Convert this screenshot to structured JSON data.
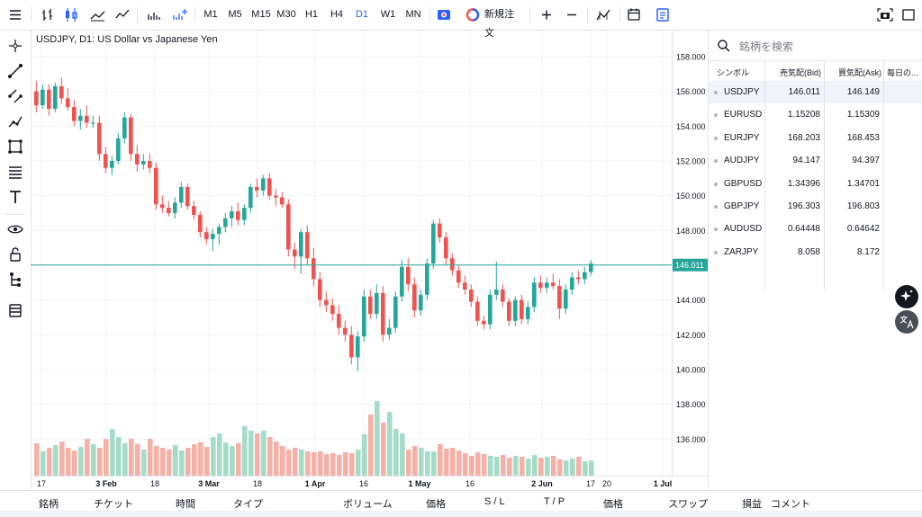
{
  "toolbar": {
    "timeframes": [
      "M1",
      "M5",
      "M15",
      "M30",
      "H1",
      "H4",
      "D1",
      "W1",
      "MN"
    ],
    "active_timeframe": "D1",
    "new_order_label": "新規注文"
  },
  "chart": {
    "title": "USDJPY, D1: US Dollar vs Japanese Yen",
    "current_price": "146.011",
    "price_labels": [
      "158.000",
      "156.000",
      "154.000",
      "152.000",
      "150.000",
      "148.000",
      "146.000",
      "144.000",
      "142.000",
      "140.000",
      "138.000",
      "136.000"
    ],
    "time_labels": [
      "17",
      "3 Feb",
      "18",
      "3 Mar",
      "18",
      "1 Apr",
      "16",
      "1 May",
      "16",
      "2 Jun",
      "17",
      "20",
      "1 Jul"
    ],
    "colors": {
      "up": "#26a69a",
      "down": "#ef5350",
      "up_vol": "#a5dcc8",
      "down_vol": "#f6b0a6",
      "price_line": "#26a69a"
    }
  },
  "chart_data": {
    "type": "candlestick",
    "symbol": "USDJPY",
    "timeframe": "D1",
    "ylim": [
      134.0,
      159.0
    ],
    "candles": [
      {
        "o": 156.0,
        "h": 156.6,
        "l": 154.8,
        "c": 155.2
      },
      {
        "o": 155.2,
        "h": 156.4,
        "l": 155.0,
        "c": 156.1
      },
      {
        "o": 156.1,
        "h": 156.4,
        "l": 154.6,
        "c": 155.0
      },
      {
        "o": 155.0,
        "h": 156.5,
        "l": 154.8,
        "c": 156.3
      },
      {
        "o": 156.3,
        "h": 156.8,
        "l": 155.3,
        "c": 155.6
      },
      {
        "o": 155.6,
        "h": 156.2,
        "l": 154.9,
        "c": 155.1
      },
      {
        "o": 155.1,
        "h": 155.5,
        "l": 154.0,
        "c": 154.3
      },
      {
        "o": 154.3,
        "h": 155.0,
        "l": 153.8,
        "c": 154.6
      },
      {
        "o": 154.6,
        "h": 155.2,
        "l": 153.9,
        "c": 154.2
      },
      {
        "o": 154.2,
        "h": 154.6,
        "l": 153.9,
        "c": 154.2
      },
      {
        "o": 154.2,
        "h": 154.6,
        "l": 152.0,
        "c": 152.4
      },
      {
        "o": 152.4,
        "h": 152.8,
        "l": 151.3,
        "c": 151.6
      },
      {
        "o": 151.6,
        "h": 152.3,
        "l": 151.2,
        "c": 152.0
      },
      {
        "o": 152.0,
        "h": 153.6,
        "l": 151.8,
        "c": 153.3
      },
      {
        "o": 153.3,
        "h": 154.8,
        "l": 153.0,
        "c": 154.5
      },
      {
        "o": 154.5,
        "h": 154.7,
        "l": 152.0,
        "c": 152.4
      },
      {
        "o": 152.4,
        "h": 152.9,
        "l": 151.4,
        "c": 151.8
      },
      {
        "o": 151.8,
        "h": 152.4,
        "l": 151.5,
        "c": 152.0
      },
      {
        "o": 152.0,
        "h": 152.4,
        "l": 151.3,
        "c": 151.6
      },
      {
        "o": 151.6,
        "h": 151.9,
        "l": 149.2,
        "c": 149.5
      },
      {
        "o": 149.5,
        "h": 150.0,
        "l": 149.0,
        "c": 149.3
      },
      {
        "o": 149.3,
        "h": 149.7,
        "l": 148.8,
        "c": 149.0
      },
      {
        "o": 149.0,
        "h": 149.9,
        "l": 148.7,
        "c": 149.6
      },
      {
        "o": 149.6,
        "h": 150.8,
        "l": 149.3,
        "c": 150.5
      },
      {
        "o": 150.5,
        "h": 150.7,
        "l": 149.2,
        "c": 149.4
      },
      {
        "o": 149.4,
        "h": 149.7,
        "l": 148.6,
        "c": 148.9
      },
      {
        "o": 148.9,
        "h": 149.1,
        "l": 147.6,
        "c": 147.9
      },
      {
        "o": 147.9,
        "h": 148.2,
        "l": 147.2,
        "c": 147.5
      },
      {
        "o": 147.5,
        "h": 148.1,
        "l": 146.8,
        "c": 147.8
      },
      {
        "o": 147.8,
        "h": 148.4,
        "l": 147.2,
        "c": 148.2
      },
      {
        "o": 148.2,
        "h": 149.0,
        "l": 147.9,
        "c": 148.7
      },
      {
        "o": 148.7,
        "h": 149.4,
        "l": 148.2,
        "c": 149.1
      },
      {
        "o": 149.1,
        "h": 149.6,
        "l": 148.3,
        "c": 148.6
      },
      {
        "o": 148.6,
        "h": 149.5,
        "l": 148.3,
        "c": 149.3
      },
      {
        "o": 149.3,
        "h": 150.7,
        "l": 149.0,
        "c": 150.5
      },
      {
        "o": 150.5,
        "h": 151.0,
        "l": 149.9,
        "c": 150.3
      },
      {
        "o": 150.3,
        "h": 151.2,
        "l": 150.0,
        "c": 151.0
      },
      {
        "o": 151.0,
        "h": 151.3,
        "l": 149.8,
        "c": 150.0
      },
      {
        "o": 150.0,
        "h": 150.4,
        "l": 149.4,
        "c": 149.9
      },
      {
        "o": 149.9,
        "h": 150.2,
        "l": 149.3,
        "c": 149.5
      },
      {
        "o": 149.5,
        "h": 149.8,
        "l": 146.5,
        "c": 146.9
      },
      {
        "o": 146.9,
        "h": 147.3,
        "l": 145.8,
        "c": 146.5
      },
      {
        "o": 146.5,
        "h": 148.1,
        "l": 145.5,
        "c": 147.9
      },
      {
        "o": 147.9,
        "h": 148.3,
        "l": 146.0,
        "c": 146.4
      },
      {
        "o": 146.4,
        "h": 147.0,
        "l": 144.8,
        "c": 145.2
      },
      {
        "o": 145.2,
        "h": 145.6,
        "l": 143.6,
        "c": 144.0
      },
      {
        "o": 144.0,
        "h": 144.5,
        "l": 143.3,
        "c": 143.7
      },
      {
        "o": 143.7,
        "h": 144.1,
        "l": 142.8,
        "c": 143.2
      },
      {
        "o": 143.2,
        "h": 143.7,
        "l": 142.0,
        "c": 142.4
      },
      {
        "o": 142.4,
        "h": 142.8,
        "l": 141.6,
        "c": 142.0
      },
      {
        "o": 142.0,
        "h": 142.5,
        "l": 140.3,
        "c": 140.7
      },
      {
        "o": 140.7,
        "h": 142.2,
        "l": 139.9,
        "c": 141.9
      },
      {
        "o": 141.9,
        "h": 144.6,
        "l": 141.6,
        "c": 144.2
      },
      {
        "o": 144.2,
        "h": 144.6,
        "l": 142.9,
        "c": 143.2
      },
      {
        "o": 143.2,
        "h": 144.9,
        "l": 142.9,
        "c": 144.4
      },
      {
        "o": 144.4,
        "h": 144.8,
        "l": 141.6,
        "c": 142.0
      },
      {
        "o": 142.0,
        "h": 142.9,
        "l": 141.7,
        "c": 142.4
      },
      {
        "o": 142.4,
        "h": 144.5,
        "l": 142.1,
        "c": 144.2
      },
      {
        "o": 144.2,
        "h": 146.3,
        "l": 143.9,
        "c": 145.9
      },
      {
        "o": 145.9,
        "h": 146.4,
        "l": 144.5,
        "c": 144.9
      },
      {
        "o": 144.9,
        "h": 145.3,
        "l": 143.0,
        "c": 143.4
      },
      {
        "o": 143.4,
        "h": 144.6,
        "l": 143.1,
        "c": 144.3
      },
      {
        "o": 144.3,
        "h": 146.4,
        "l": 144.0,
        "c": 146.1
      },
      {
        "o": 146.1,
        "h": 148.6,
        "l": 145.8,
        "c": 148.4
      },
      {
        "o": 148.4,
        "h": 148.7,
        "l": 147.3,
        "c": 147.6
      },
      {
        "o": 147.6,
        "h": 147.9,
        "l": 146.0,
        "c": 146.4
      },
      {
        "o": 146.4,
        "h": 146.7,
        "l": 145.4,
        "c": 145.7
      },
      {
        "o": 145.7,
        "h": 146.0,
        "l": 144.7,
        "c": 145.0
      },
      {
        "o": 145.0,
        "h": 145.4,
        "l": 144.3,
        "c": 144.6
      },
      {
        "o": 144.6,
        "h": 144.9,
        "l": 143.6,
        "c": 143.9
      },
      {
        "o": 143.9,
        "h": 144.2,
        "l": 142.5,
        "c": 142.8
      },
      {
        "o": 142.8,
        "h": 143.1,
        "l": 142.3,
        "c": 142.6
      },
      {
        "o": 142.6,
        "h": 144.6,
        "l": 142.3,
        "c": 144.3
      },
      {
        "o": 144.3,
        "h": 146.2,
        "l": 144.0,
        "c": 144.6
      },
      {
        "o": 144.6,
        "h": 144.9,
        "l": 143.6,
        "c": 143.9
      },
      {
        "o": 143.9,
        "h": 144.1,
        "l": 142.5,
        "c": 142.8
      },
      {
        "o": 142.8,
        "h": 144.2,
        "l": 142.5,
        "c": 144.0
      },
      {
        "o": 144.0,
        "h": 144.3,
        "l": 142.6,
        "c": 142.9
      },
      {
        "o": 142.9,
        "h": 143.9,
        "l": 142.6,
        "c": 143.6
      },
      {
        "o": 143.6,
        "h": 145.3,
        "l": 143.3,
        "c": 145.0
      },
      {
        "o": 145.0,
        "h": 145.4,
        "l": 144.4,
        "c": 144.7
      },
      {
        "o": 144.7,
        "h": 145.3,
        "l": 144.4,
        "c": 145.0
      },
      {
        "o": 145.0,
        "h": 145.5,
        "l": 144.6,
        "c": 144.8
      },
      {
        "o": 144.8,
        "h": 145.2,
        "l": 142.9,
        "c": 143.5
      },
      {
        "o": 143.5,
        "h": 144.9,
        "l": 143.2,
        "c": 144.6
      },
      {
        "o": 144.6,
        "h": 145.6,
        "l": 144.3,
        "c": 145.3
      },
      {
        "o": 145.3,
        "h": 145.7,
        "l": 144.9,
        "c": 145.2
      },
      {
        "o": 145.2,
        "h": 145.9,
        "l": 144.9,
        "c": 145.6
      },
      {
        "o": 145.6,
        "h": 146.3,
        "l": 145.4,
        "c": 146.1
      }
    ],
    "volumes": [
      0.36,
      0.27,
      0.31,
      0.34,
      0.38,
      0.31,
      0.28,
      0.32,
      0.41,
      0.35,
      0.31,
      0.41,
      0.52,
      0.43,
      0.36,
      0.41,
      0.35,
      0.29,
      0.41,
      0.33,
      0.31,
      0.29,
      0.34,
      0.28,
      0.31,
      0.35,
      0.37,
      0.32,
      0.43,
      0.47,
      0.37,
      0.33,
      0.36,
      0.55,
      0.5,
      0.47,
      0.5,
      0.43,
      0.38,
      0.33,
      0.29,
      0.31,
      0.29,
      0.27,
      0.26,
      0.27,
      0.24,
      0.25,
      0.23,
      0.26,
      0.25,
      0.29,
      0.46,
      0.68,
      0.83,
      0.59,
      0.71,
      0.52,
      0.47,
      0.29,
      0.33,
      0.31,
      0.27,
      0.27,
      0.35,
      0.3,
      0.31,
      0.28,
      0.25,
      0.22,
      0.26,
      0.24,
      0.22,
      0.21,
      0.23,
      0.2,
      0.22,
      0.21,
      0.19,
      0.23,
      0.2,
      0.21,
      0.22,
      0.18,
      0.17,
      0.19,
      0.21,
      0.16,
      0.17
    ]
  },
  "watchlist": {
    "search_placeholder": "銘柄を検索",
    "headers": [
      "シンボル",
      "売気配(Bid)",
      "買気配(Ask)",
      "毎日の..."
    ],
    "rows": [
      {
        "symbol": "USDJPY",
        "bid": "146.011",
        "ask": "146.149"
      },
      {
        "symbol": "EURUSD",
        "bid": "1.15208",
        "ask": "1.15309"
      },
      {
        "symbol": "EURJPY",
        "bid": "168.203",
        "ask": "168.453"
      },
      {
        "symbol": "AUDJPY",
        "bid": "94.147",
        "ask": "94.397"
      },
      {
        "symbol": "GBPUSD",
        "bid": "1.34396",
        "ask": "1.34701"
      },
      {
        "symbol": "GBPJPY",
        "bid": "196.303",
        "ask": "196.803"
      },
      {
        "symbol": "AUDUSD",
        "bid": "0.64448",
        "ask": "0.64642"
      },
      {
        "symbol": "ZARJPY",
        "bid": "8.058",
        "ask": "8.172"
      }
    ]
  },
  "bottom": {
    "columns": [
      "銘柄",
      "チケット",
      "時間",
      "タイプ",
      "ボリューム",
      "価格",
      "S / L",
      "T / P",
      "価格",
      "スワップ",
      "損益",
      "コメント"
    ]
  }
}
